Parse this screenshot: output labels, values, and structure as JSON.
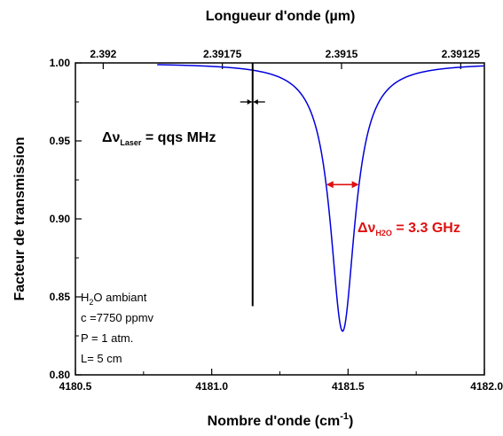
{
  "chart_data": {
    "type": "line",
    "xlabel": {
      "main": "Nombre d'onde (cm",
      "sup": "-1",
      "end": ")"
    },
    "x2label": "Longueur d'onde (µm)",
    "ylabel": "Facteur de transmission",
    "xlim": [
      4180.5,
      4182.0
    ],
    "ylim": [
      0.8,
      1.0
    ],
    "x_ticks": [
      4180.5,
      4181.0,
      4181.5,
      4182.0
    ],
    "x_tick_labels": [
      "4180.5",
      "4181.0",
      "4181.5",
      "4182.0"
    ],
    "y_ticks": [
      0.8,
      0.85,
      0.9,
      0.95,
      1.0
    ],
    "y_tick_labels": [
      "0.80",
      "0.85",
      "0.90",
      "0.95",
      "1.00"
    ],
    "x2_ticks": [
      2.392,
      2.39175,
      2.3915,
      2.39125
    ],
    "x2_tick_labels": [
      "2.392",
      "2.39175",
      "2.3915",
      "2.39125"
    ],
    "series": [
      {
        "color": "#0000dd",
        "shape": "lorentzian",
        "center": 4181.48,
        "fwhm": 0.11,
        "depth": 0.172,
        "baseline": 1.0,
        "x_start": 4180.8,
        "x_end": 4182.0
      }
    ],
    "laser_line": {
      "x": 4181.15,
      "y_from": 0.844,
      "y_to": 1.0,
      "color": "#000000"
    },
    "laser_marker": {
      "x": 4181.15,
      "y": 0.975
    },
    "h2o_arrow": {
      "x1": 4181.42,
      "x2": 4181.54,
      "y": 0.922,
      "color": "#e01010"
    },
    "annotations": {
      "laser": {
        "prefix": "Δν",
        "sub": "Laser",
        "suffix": " = qqs MHz",
        "color": "#000000"
      },
      "h2o": {
        "prefix": "Δν",
        "sub": "H2O",
        "suffix": " = 3.3 GHz",
        "color": "#e01010"
      },
      "conditions": [
        {
          "main": "H",
          "sub": "2",
          "rest": "O ambiant"
        },
        {
          "main": "c =7750 ppmv",
          "sub": "",
          "rest": ""
        },
        {
          "main": "P = 1 atm.",
          "sub": "",
          "rest": ""
        },
        {
          "main": "L= 5 cm",
          "sub": "",
          "rest": ""
        }
      ]
    }
  }
}
